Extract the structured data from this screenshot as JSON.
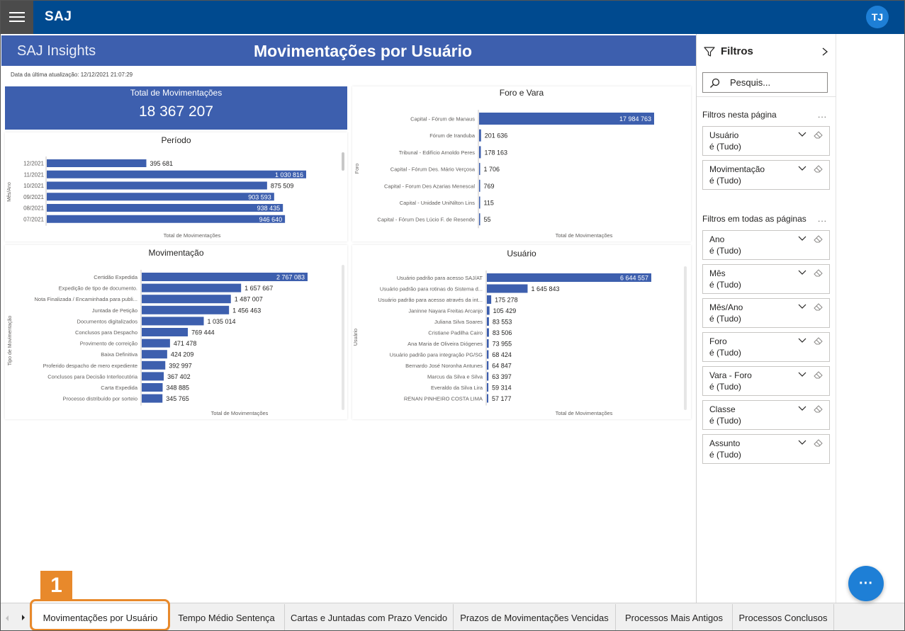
{
  "header": {
    "app_name": "SAJ",
    "user_initials": "TJ"
  },
  "report": {
    "brand": "SAJ Insights",
    "title": "Movimentações por Usuário",
    "last_update": "Data da última atualização: 12/12/2021 21:07:29"
  },
  "kpi": {
    "label": "Total de Movimentações",
    "value": "18 367 207"
  },
  "colors": {
    "topbar": "#004a8f",
    "title_band": "#3d5fae",
    "bar": "#3d5fae",
    "accent": "#e8892b"
  },
  "chart_data": [
    {
      "id": "periodo",
      "type": "bar",
      "orientation": "horizontal",
      "title": "Período",
      "xlabel": "Total de Movimentações",
      "ylabel": "Mês/Ano",
      "categories": [
        "12/2021",
        "11/2021",
        "10/2021",
        "09/2021",
        "08/2021",
        "07/2021"
      ],
      "values": [
        395681,
        1030816,
        875509,
        903593,
        938435,
        946640
      ],
      "labels": [
        "395 681",
        "1 030 816",
        "875 509",
        "903 593",
        "938 435",
        "946 640"
      ]
    },
    {
      "id": "foro",
      "type": "bar",
      "orientation": "horizontal",
      "title": "Foro e Vara",
      "xlabel": "Total de Movimentações",
      "ylabel": "Foro",
      "categories": [
        "Capital - Fórum de Manaus",
        "Fórum de Iranduba",
        "Tribunal - Edifício Arnoldo Peres",
        "Capital - Fórum Des. Mário Verçosa",
        "Capital - Forum Des Azarias Menescal",
        "Capital - Unidade UniNilton Lins",
        "Capital - Fórum Des Lúcio F. de Resende"
      ],
      "values": [
        17984763,
        201636,
        178163,
        1706,
        769,
        115,
        55
      ],
      "labels": [
        "17 984 763",
        "201 636",
        "178 163",
        "1 706",
        "769",
        "115",
        "55"
      ]
    },
    {
      "id": "movimentacao",
      "type": "bar",
      "orientation": "horizontal",
      "title": "Movimentação",
      "xlabel": "Total de Movimentações",
      "ylabel": "Tipo de Movimentação",
      "categories": [
        "Certidão Expedida",
        "Expedição de tipo de documento.",
        "Nota Finalizada / Encaminhada para publi...",
        "Juntada de Petição",
        "Documentos digitalizados",
        "Conclusos para Despacho",
        "Provimento de correição",
        "Baixa Definitiva",
        "Proferido despacho de mero expediente",
        "Conclusos para Decisão Interlocutória",
        "Carta Expedida",
        "Processo distribuído por sorteio"
      ],
      "values": [
        2767083,
        1657667,
        1487007,
        1456463,
        1035014,
        769444,
        471478,
        424209,
        392997,
        367402,
        348885,
        345765
      ],
      "labels": [
        "2 767 083",
        "1 657 667",
        "1 487 007",
        "1 456 463",
        "1 035 014",
        "769 444",
        "471 478",
        "424 209",
        "392 997",
        "367 402",
        "348 885",
        "345 765"
      ]
    },
    {
      "id": "usuario",
      "type": "bar",
      "orientation": "horizontal",
      "title": "Usuário",
      "xlabel": "Total de Movimentações",
      "ylabel": "Usuário",
      "categories": [
        "Usuário padrão para acesso SAJ/AT",
        "Usuário padrão para rotinas do Sistema d...",
        "Usuário padrão para acesso através da int...",
        "Janinne Nayara Freitas Arcanjo",
        "Juliana Silva Soares",
        "Cristiane Padilha Cairo",
        "Ana Maria de Oliveira Diógenes",
        "Usuário padrão para integração PG/SG",
        "Bernardo José Noronha Antunes",
        "Marcus da Silva e Silva",
        "Everaldo da Silva Lira",
        "RENAN PINHEIRO COSTA LIMA"
      ],
      "values": [
        6644557,
        1645843,
        175278,
        105429,
        83553,
        83506,
        73955,
        68424,
        64847,
        63397,
        59314,
        57177
      ],
      "labels": [
        "6 644 557",
        "1 645 843",
        "175 278",
        "105 429",
        "83 553",
        "83 506",
        "73 955",
        "68 424",
        "64 847",
        "63 397",
        "59 314",
        "57 177"
      ]
    }
  ],
  "filters": {
    "title": "Filtros",
    "search_placeholder": "Pesquis...",
    "page_section": "Filtros nesta página",
    "all_section": "Filtros em todas as páginas",
    "more": "...",
    "page_filters": [
      {
        "name": "Usuário",
        "value": "é (Tudo)"
      },
      {
        "name": "Movimentação",
        "value": "é (Tudo)"
      }
    ],
    "all_filters": [
      {
        "name": "Ano",
        "value": "é (Tudo)"
      },
      {
        "name": "Mês",
        "value": "é (Tudo)"
      },
      {
        "name": "Mês/Ano",
        "value": "é (Tudo)"
      },
      {
        "name": "Foro",
        "value": "é (Tudo)"
      },
      {
        "name": "Vara - Foro",
        "value": "é (Tudo)"
      },
      {
        "name": "Classe",
        "value": "é (Tudo)"
      },
      {
        "name": "Assunto",
        "value": "é (Tudo)"
      }
    ]
  },
  "tabs": [
    {
      "label": "Movimentações por Usuário",
      "active": true
    },
    {
      "label": "Tempo Médio Sentença",
      "active": false
    },
    {
      "label": "Cartas e Juntadas com Prazo Vencido",
      "active": false
    },
    {
      "label": "Prazos de Movimentações Vencidas",
      "active": false
    },
    {
      "label": "Processos Mais Antigos",
      "active": false
    },
    {
      "label": "Processos Conclusos",
      "active": false
    }
  ],
  "annotation": {
    "step": "1"
  },
  "fab": {
    "label": "···"
  }
}
